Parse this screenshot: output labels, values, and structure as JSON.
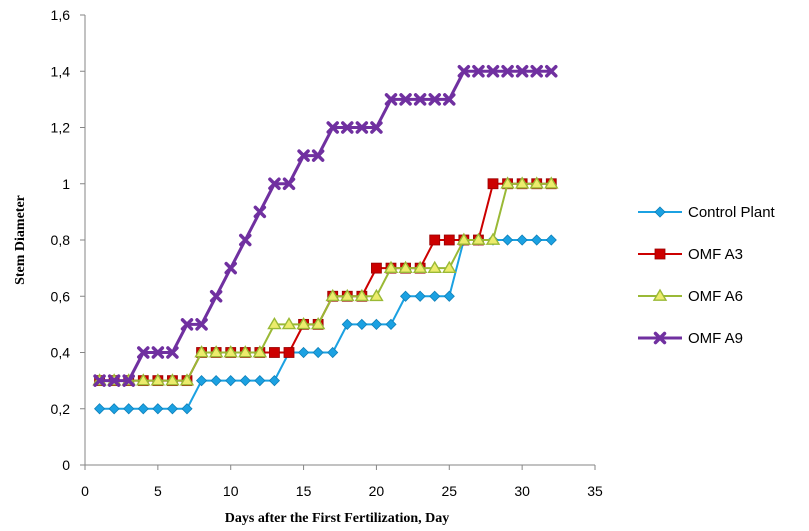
{
  "chart_data": {
    "type": "line",
    "xlabel": "Days after the First Fertilization, Day",
    "ylabel": "Stem Diameter",
    "xlim": [
      0,
      35
    ],
    "ylim": [
      0,
      1.6
    ],
    "xticks": [
      "0",
      "5",
      "10",
      "15",
      "20",
      "25",
      "30",
      "35"
    ],
    "yticks": [
      "0",
      "0,2",
      "0,4",
      "0,6",
      "0,8",
      "1",
      "1,2",
      "1,4",
      "1,6"
    ],
    "grid": false,
    "legend_position": "right",
    "x": [
      1,
      2,
      3,
      4,
      5,
      6,
      7,
      8,
      9,
      10,
      11,
      12,
      13,
      14,
      15,
      16,
      17,
      18,
      19,
      20,
      21,
      22,
      23,
      24,
      25,
      26,
      27,
      28,
      29,
      30,
      31,
      32
    ],
    "series": [
      {
        "name": "Control Plant",
        "color": "#1ba1e2",
        "marker": "diamond",
        "values": [
          0.2,
          0.2,
          0.2,
          0.2,
          0.2,
          0.2,
          0.2,
          0.3,
          0.3,
          0.3,
          0.3,
          0.3,
          0.3,
          0.4,
          0.4,
          0.4,
          0.4,
          0.5,
          0.5,
          0.5,
          0.5,
          0.6,
          0.6,
          0.6,
          0.6,
          0.8,
          0.8,
          0.8,
          0.8,
          0.8,
          0.8,
          0.8
        ]
      },
      {
        "name": "OMF A3",
        "color": "#cc0000",
        "marker": "square",
        "values": [
          0.3,
          0.3,
          0.3,
          0.3,
          0.3,
          0.3,
          0.3,
          0.4,
          0.4,
          0.4,
          0.4,
          0.4,
          0.4,
          0.4,
          0.5,
          0.5,
          0.6,
          0.6,
          0.6,
          0.7,
          0.7,
          0.7,
          0.7,
          0.8,
          0.8,
          0.8,
          0.8,
          1.0,
          1.0,
          1.0,
          1.0,
          1.0
        ]
      },
      {
        "name": "OMF A6",
        "color": "#9ab936",
        "marker": "triangle",
        "values": [
          0.3,
          0.3,
          0.3,
          0.3,
          0.3,
          0.3,
          0.3,
          0.4,
          0.4,
          0.4,
          0.4,
          0.4,
          0.5,
          0.5,
          0.5,
          0.5,
          0.6,
          0.6,
          0.6,
          0.6,
          0.7,
          0.7,
          0.7,
          0.7,
          0.7,
          0.8,
          0.8,
          0.8,
          1.0,
          1.0,
          1.0,
          1.0
        ]
      },
      {
        "name": "OMF A9",
        "color": "#7030a0",
        "marker": "x",
        "values": [
          0.3,
          0.3,
          0.3,
          0.4,
          0.4,
          0.4,
          0.5,
          0.5,
          0.6,
          0.7,
          0.8,
          0.9,
          1.0,
          1.0,
          1.1,
          1.1,
          1.2,
          1.2,
          1.2,
          1.2,
          1.3,
          1.3,
          1.3,
          1.3,
          1.3,
          1.4,
          1.4,
          1.4,
          1.4,
          1.4,
          1.4,
          1.4
        ]
      }
    ]
  }
}
